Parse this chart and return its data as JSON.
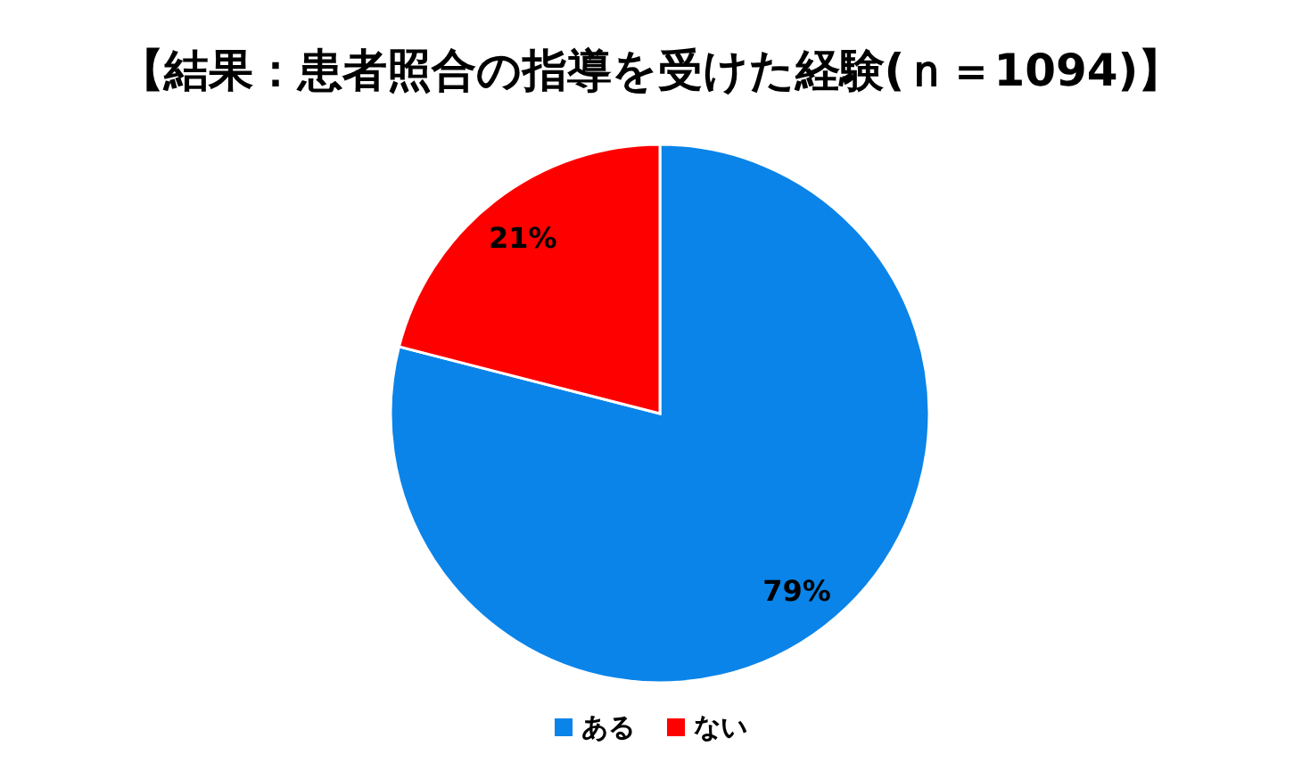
{
  "chart_data": {
    "type": "pie",
    "title": "【結果：患者照合の指導を受けた経験(ｎ＝1094)】",
    "categories": [
      "ある",
      "ない"
    ],
    "values": [
      79,
      21
    ],
    "colors": [
      "#0a84e8",
      "#ff0000"
    ],
    "value_labels": [
      "79%",
      "21%"
    ],
    "legend": "bottom"
  }
}
